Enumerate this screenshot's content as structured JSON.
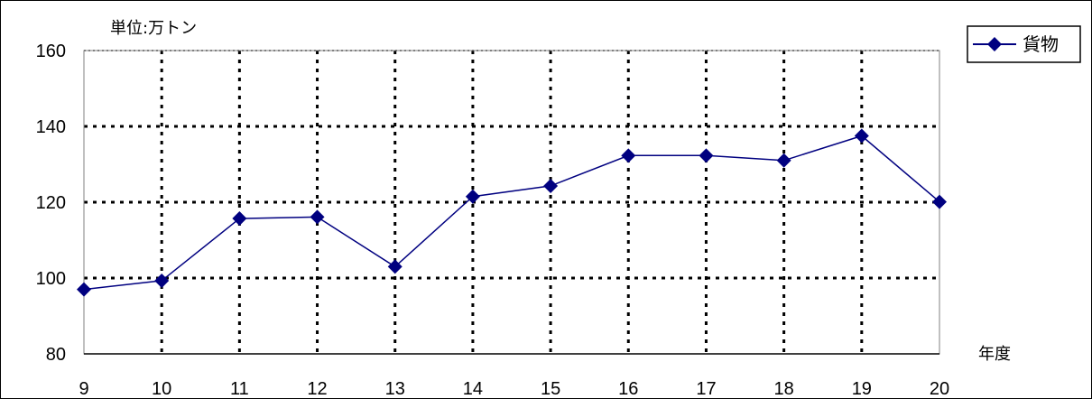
{
  "chart_data": {
    "type": "line",
    "unit_label": "単位:万トン",
    "xlabel": "年度",
    "ylabel": "",
    "categories": [
      "9",
      "10",
      "11",
      "12",
      "13",
      "14",
      "15",
      "16",
      "17",
      "18",
      "19",
      "20"
    ],
    "y_ticks": [
      "80",
      "100",
      "120",
      "140",
      "160"
    ],
    "ylim": [
      80,
      160
    ],
    "grid": true,
    "legend_position": "top-right",
    "series": [
      {
        "name": "貨物",
        "color": "#000080",
        "marker": "diamond",
        "values": [
          97,
          99.3,
          115.7,
          116.1,
          103,
          121.5,
          124.3,
          132.3,
          132.3,
          131,
          137.5,
          120.1
        ]
      }
    ]
  }
}
